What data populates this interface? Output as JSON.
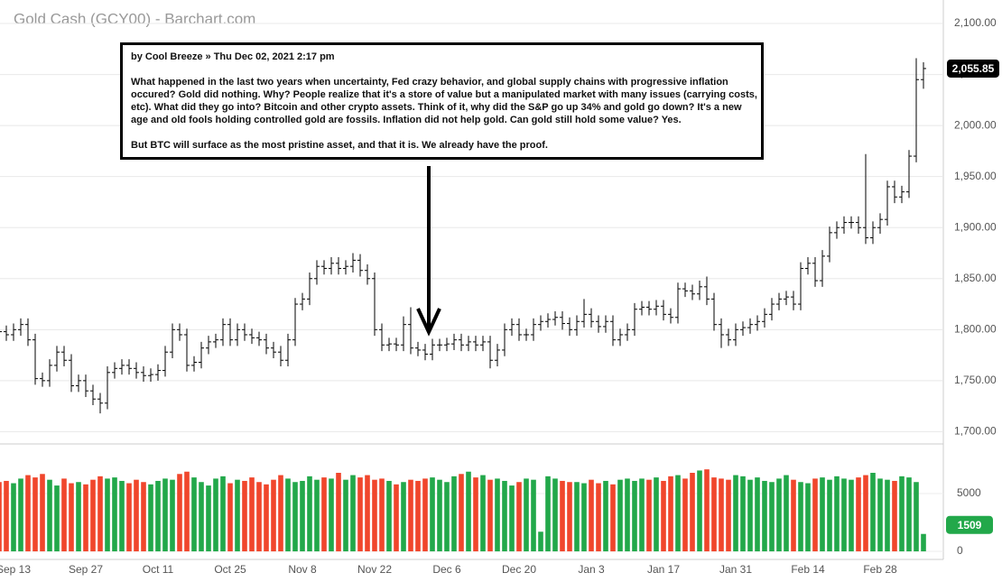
{
  "chart_data": {
    "type": "ohlc",
    "title": "Gold Cash (GCY00) - Barchart.com",
    "categories": [
      null,
      null,
      "Sep 13",
      null,
      null,
      null,
      null,
      null,
      null,
      null,
      null,
      null,
      "Sep 27",
      null,
      null,
      null,
      null,
      null,
      null,
      null,
      null,
      null,
      "Oct 11",
      null,
      null,
      null,
      null,
      null,
      null,
      null,
      null,
      null,
      "Oct 25",
      null,
      null,
      null,
      null,
      null,
      null,
      null,
      null,
      null,
      "Nov 8",
      null,
      null,
      null,
      null,
      null,
      null,
      null,
      null,
      null,
      "Nov 22",
      null,
      null,
      null,
      null,
      null,
      null,
      null,
      null,
      null,
      "Dec 6",
      null,
      null,
      null,
      null,
      null,
      null,
      null,
      null,
      null,
      "Dec 20",
      null,
      null,
      null,
      null,
      null,
      null,
      null,
      null,
      null,
      "Jan 3",
      null,
      null,
      null,
      null,
      null,
      null,
      null,
      null,
      null,
      "Jan 17",
      null,
      null,
      null,
      null,
      null,
      null,
      null,
      null,
      null,
      "Jan 31",
      null,
      null,
      null,
      null,
      null,
      null,
      null,
      null,
      null,
      "Feb 14",
      null,
      null,
      null,
      null,
      null,
      null,
      null,
      null,
      null,
      "Feb 28",
      null,
      null,
      null,
      null,
      null,
      null
    ],
    "open": [
      1802,
      1798,
      1795,
      1800,
      1805,
      1790,
      1752,
      1750,
      1765,
      1778,
      1770,
      1745,
      1750,
      1740,
      1732,
      1728,
      1758,
      1762,
      1765,
      1762,
      1758,
      1755,
      1756,
      1760,
      1778,
      1800,
      1795,
      1765,
      1768,
      1782,
      1788,
      1790,
      1805,
      1790,
      1800,
      1795,
      1792,
      1790,
      1782,
      1778,
      1770,
      1790,
      1825,
      1830,
      1850,
      1862,
      1860,
      1865,
      1860,
      1862,
      1868,
      1858,
      1850,
      1800,
      1785,
      1786,
      1785,
      1805,
      1782,
      1780,
      1776,
      1785,
      1785,
      1786,
      1790,
      1785,
      1788,
      1785,
      1788,
      1770,
      1780,
      1800,
      1805,
      1795,
      1795,
      1805,
      1808,
      1810,
      1812,
      1806,
      1800,
      1808,
      1815,
      1808,
      1803,
      1808,
      1790,
      1795,
      1800,
      1820,
      1822,
      1820,
      1823,
      1815,
      1812,
      1840,
      1838,
      1835,
      1842,
      1830,
      1805,
      1795,
      1790,
      1800,
      1802,
      1805,
      1808,
      1815,
      1825,
      1830,
      1832,
      1825,
      1860,
      1865,
      1848,
      1872,
      1895,
      1900,
      1905,
      1905,
      1900,
      1890,
      1900,
      1908,
      1940,
      1930,
      1935,
      1970,
      2045
    ],
    "high": [
      1808,
      1804,
      1806,
      1811,
      1811,
      1796,
      1758,
      1771,
      1784,
      1784,
      1776,
      1756,
      1756,
      1746,
      1738,
      1764,
      1768,
      1771,
      1771,
      1768,
      1764,
      1762,
      1766,
      1784,
      1806,
      1806,
      1801,
      1774,
      1788,
      1794,
      1796,
      1811,
      1811,
      1806,
      1806,
      1801,
      1798,
      1796,
      1788,
      1784,
      1796,
      1831,
      1836,
      1856,
      1868,
      1868,
      1871,
      1871,
      1868,
      1875,
      1874,
      1864,
      1856,
      1806,
      1792,
      1792,
      1813,
      1822,
      1788,
      1786,
      1791,
      1791,
      1792,
      1796,
      1796,
      1794,
      1794,
      1794,
      1794,
      1786,
      1806,
      1811,
      1811,
      1801,
      1811,
      1814,
      1816,
      1818,
      1818,
      1812,
      1814,
      1830,
      1821,
      1814,
      1814,
      1814,
      1801,
      1806,
      1826,
      1828,
      1828,
      1829,
      1829,
      1821,
      1846,
      1846,
      1844,
      1848,
      1852,
      1836,
      1811,
      1801,
      1806,
      1808,
      1811,
      1814,
      1821,
      1831,
      1836,
      1838,
      1838,
      1866,
      1871,
      1871,
      1878,
      1901,
      1906,
      1911,
      1911,
      1911,
      1972,
      1906,
      1914,
      1946,
      1946,
      1941,
      1976,
      2066,
      2062
    ],
    "low": [
      1792,
      1789,
      1789,
      1794,
      1784,
      1746,
      1744,
      1744,
      1759,
      1764,
      1739,
      1739,
      1734,
      1726,
      1718,
      1722,
      1752,
      1756,
      1756,
      1752,
      1749,
      1749,
      1750,
      1754,
      1772,
      1789,
      1759,
      1759,
      1762,
      1776,
      1782,
      1784,
      1784,
      1784,
      1789,
      1786,
      1784,
      1776,
      1772,
      1764,
      1764,
      1784,
      1819,
      1824,
      1844,
      1854,
      1854,
      1854,
      1854,
      1856,
      1852,
      1844,
      1794,
      1779,
      1779,
      1779,
      1779,
      1776,
      1774,
      1770,
      1770,
      1779,
      1779,
      1780,
      1779,
      1779,
      1779,
      1779,
      1762,
      1764,
      1774,
      1794,
      1789,
      1789,
      1789,
      1799,
      1802,
      1804,
      1800,
      1794,
      1794,
      1802,
      1802,
      1797,
      1797,
      1784,
      1784,
      1789,
      1794,
      1814,
      1814,
      1814,
      1809,
      1806,
      1806,
      1832,
      1829,
      1829,
      1824,
      1799,
      1782,
      1784,
      1784,
      1794,
      1796,
      1799,
      1802,
      1809,
      1819,
      1824,
      1819,
      1819,
      1854,
      1842,
      1842,
      1866,
      1889,
      1894,
      1899,
      1894,
      1884,
      1884,
      1894,
      1902,
      1924,
      1924,
      1929,
      1964,
      2036
    ],
    "close": [
      1798,
      1795,
      1800,
      1805,
      1790,
      1752,
      1750,
      1765,
      1778,
      1770,
      1745,
      1750,
      1740,
      1732,
      1728,
      1758,
      1762,
      1765,
      1762,
      1758,
      1755,
      1756,
      1760,
      1778,
      1800,
      1795,
      1765,
      1768,
      1782,
      1788,
      1790,
      1805,
      1790,
      1800,
      1795,
      1792,
      1790,
      1782,
      1778,
      1770,
      1790,
      1825,
      1830,
      1850,
      1862,
      1860,
      1865,
      1860,
      1862,
      1868,
      1858,
      1850,
      1800,
      1785,
      1786,
      1785,
      1805,
      1782,
      1780,
      1776,
      1785,
      1785,
      1786,
      1790,
      1785,
      1788,
      1785,
      1788,
      1770,
      1780,
      1800,
      1805,
      1795,
      1795,
      1805,
      1808,
      1810,
      1812,
      1806,
      1800,
      1808,
      1815,
      1808,
      1803,
      1808,
      1790,
      1795,
      1800,
      1820,
      1822,
      1820,
      1823,
      1815,
      1812,
      1840,
      1838,
      1835,
      1842,
      1830,
      1805,
      1795,
      1790,
      1800,
      1802,
      1805,
      1808,
      1815,
      1825,
      1830,
      1832,
      1825,
      1860,
      1865,
      1848,
      1872,
      1895,
      1900,
      1905,
      1905,
      1900,
      1890,
      1900,
      1908,
      1940,
      1930,
      1935,
      1970,
      2045,
      2055.85
    ],
    "value_labels": [
      null,
      null,
      null,
      null,
      null,
      null,
      null,
      null,
      null,
      null,
      null,
      null,
      null,
      null,
      null,
      null,
      null,
      null,
      null,
      null,
      null,
      null,
      null,
      null,
      null,
      null,
      null,
      null,
      null,
      null,
      null,
      null,
      null,
      null,
      null,
      null,
      null,
      null,
      null,
      null,
      null,
      null,
      null,
      null,
      null,
      null,
      null,
      null,
      null,
      null,
      null,
      null,
      null,
      null,
      null,
      null,
      null,
      null,
      null,
      null,
      null,
      null,
      null,
      null,
      null,
      null,
      null,
      null,
      null,
      null,
      null,
      null,
      null,
      null,
      null,
      null,
      null,
      null,
      null,
      null,
      null,
      null,
      null,
      null,
      null,
      null,
      null,
      null,
      null,
      null,
      null,
      null,
      null,
      null,
      null,
      null,
      null,
      null,
      null,
      null,
      null,
      null,
      null,
      null,
      null,
      null,
      null,
      null,
      null,
      null,
      null,
      null,
      null,
      null,
      null,
      null,
      null,
      null,
      null,
      null,
      null,
      null,
      null,
      null,
      null,
      null,
      null,
      null,
      "2,055.85"
    ],
    "ylim": [
      1688,
      2123
    ],
    "yticks": [
      {
        "value": 1700,
        "label": "1,700.00"
      },
      {
        "value": 1750,
        "label": "1,750.00"
      },
      {
        "value": 1800,
        "label": "1,800.00"
      },
      {
        "value": 1850,
        "label": "1,850.00"
      },
      {
        "value": 1900,
        "label": "1,900.00"
      },
      {
        "value": 1950,
        "label": "1,950.00"
      },
      {
        "value": 2000,
        "label": "2,000.00"
      },
      {
        "value": 2050,
        "label": "2,050.00"
      },
      {
        "value": 2100,
        "label": "2,100.00"
      }
    ],
    "grid": true,
    "bar_color": "#000000",
    "volume": {
      "values": [
        6000,
        6100,
        5900,
        6300,
        6600,
        6400,
        6700,
        6200,
        5700,
        6300,
        5900,
        6000,
        5800,
        6200,
        6500,
        6300,
        6400,
        6100,
        5900,
        6200,
        6000,
        5800,
        6100,
        6300,
        6200,
        6700,
        6900,
        6400,
        6000,
        5700,
        6300,
        6500,
        5900,
        6200,
        6100,
        6400,
        6000,
        5800,
        6200,
        6600,
        6300,
        6000,
        6100,
        6500,
        6200,
        6400,
        6300,
        6800,
        6200,
        6600,
        6400,
        6600,
        6200,
        6300,
        6100,
        5800,
        6000,
        6200,
        6100,
        6300,
        6400,
        6200,
        6000,
        6500,
        6700,
        6900,
        6400,
        6600,
        6200,
        6300,
        6100,
        5700,
        6000,
        6300,
        6200,
        1700,
        6500,
        6300,
        6100,
        6000,
        6000,
        5900,
        6200,
        5900,
        6100,
        5800,
        6200,
        6300,
        6100,
        6300,
        6200,
        6400,
        6100,
        6500,
        6600,
        6300,
        6800,
        7000,
        7100,
        6400,
        6300,
        6200,
        6600,
        6500,
        6200,
        6400,
        6100,
        6000,
        6300,
        6600,
        6200,
        6000,
        5900,
        6300,
        6400,
        6200,
        6500,
        6300,
        6200,
        6400,
        6600,
        6800,
        6300,
        6200,
        6100,
        6500,
        6400,
        6000,
        1509
      ],
      "ylim": [
        -700,
        9300
      ],
      "yticks": [
        0,
        5000
      ],
      "up_color": "#22a84a",
      "down_color": "#f0462c"
    },
    "annotation": {
      "header": "by Cool Breeze » Thu Dec 02, 2021 2:17 pm",
      "paragraphs": [
        "What happened in the last two years when uncertainty, Fed crazy behavior, and global supply chains with progressive inflation occured? Gold did nothing. Why? People realize that it's a store of value but a manipulated market with many issues (carrying costs, etc). What did they go into? Bitcoin and other crypto assets. Think of it, why did the S&P go up 34% and gold go down? It's a new age and old fools holding controlled gold are fossils. Inflation did not help gold. Can gold still hold some value? Yes.",
        "But BTC will surface as the most pristine asset, and that it is. We already have the proof."
      ]
    }
  }
}
